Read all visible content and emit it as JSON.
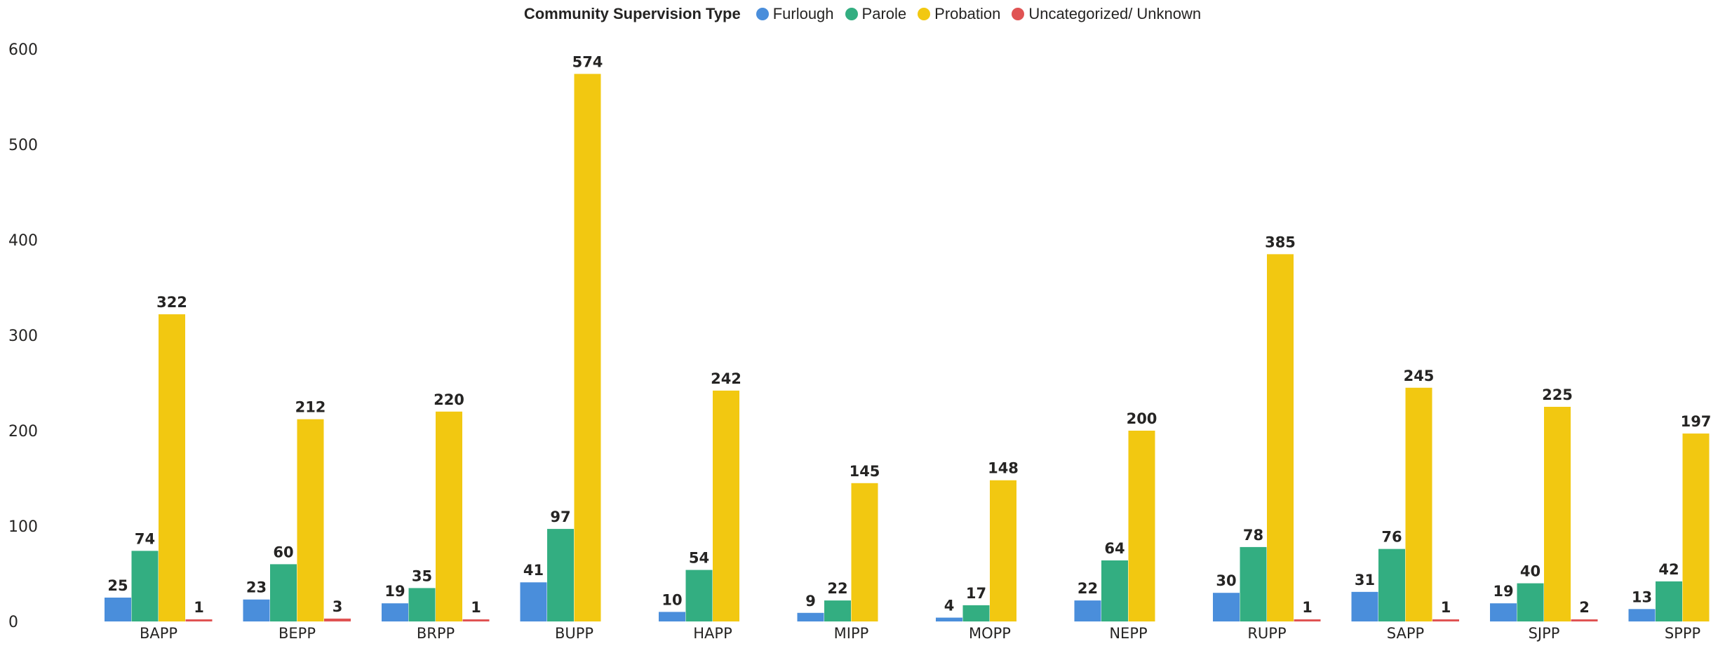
{
  "chart_data": {
    "type": "bar",
    "legend_title": "Community Supervision Type",
    "legend_position": "top-center",
    "categories": [
      "BAPP",
      "BEPP",
      "BRPP",
      "BUPP",
      "HAPP",
      "MIPP",
      "MOPP",
      "NEPP",
      "RUPP",
      "SAPP",
      "SJPP",
      "SPPP"
    ],
    "series": [
      {
        "name": "Furlough",
        "color": "#4A8EDB",
        "values": [
          25,
          23,
          19,
          41,
          10,
          9,
          4,
          22,
          30,
          31,
          19,
          13
        ]
      },
      {
        "name": "Parole",
        "color": "#33AE81",
        "values": [
          74,
          60,
          35,
          97,
          54,
          22,
          17,
          64,
          78,
          76,
          40,
          42
        ]
      },
      {
        "name": "Probation",
        "color": "#F2C811",
        "values": [
          322,
          212,
          220,
          574,
          242,
          145,
          148,
          200,
          385,
          245,
          225,
          197
        ]
      },
      {
        "name": "Uncategorized/ Unknown",
        "color": "#E05353",
        "values": [
          1,
          3,
          1,
          null,
          null,
          null,
          null,
          null,
          1,
          1,
          2,
          null
        ]
      }
    ],
    "y_ticks": [
      0,
      100,
      200,
      300,
      400,
      500,
      600
    ],
    "ylim": [
      0,
      600
    ],
    "grid": false,
    "data_labels": true
  }
}
